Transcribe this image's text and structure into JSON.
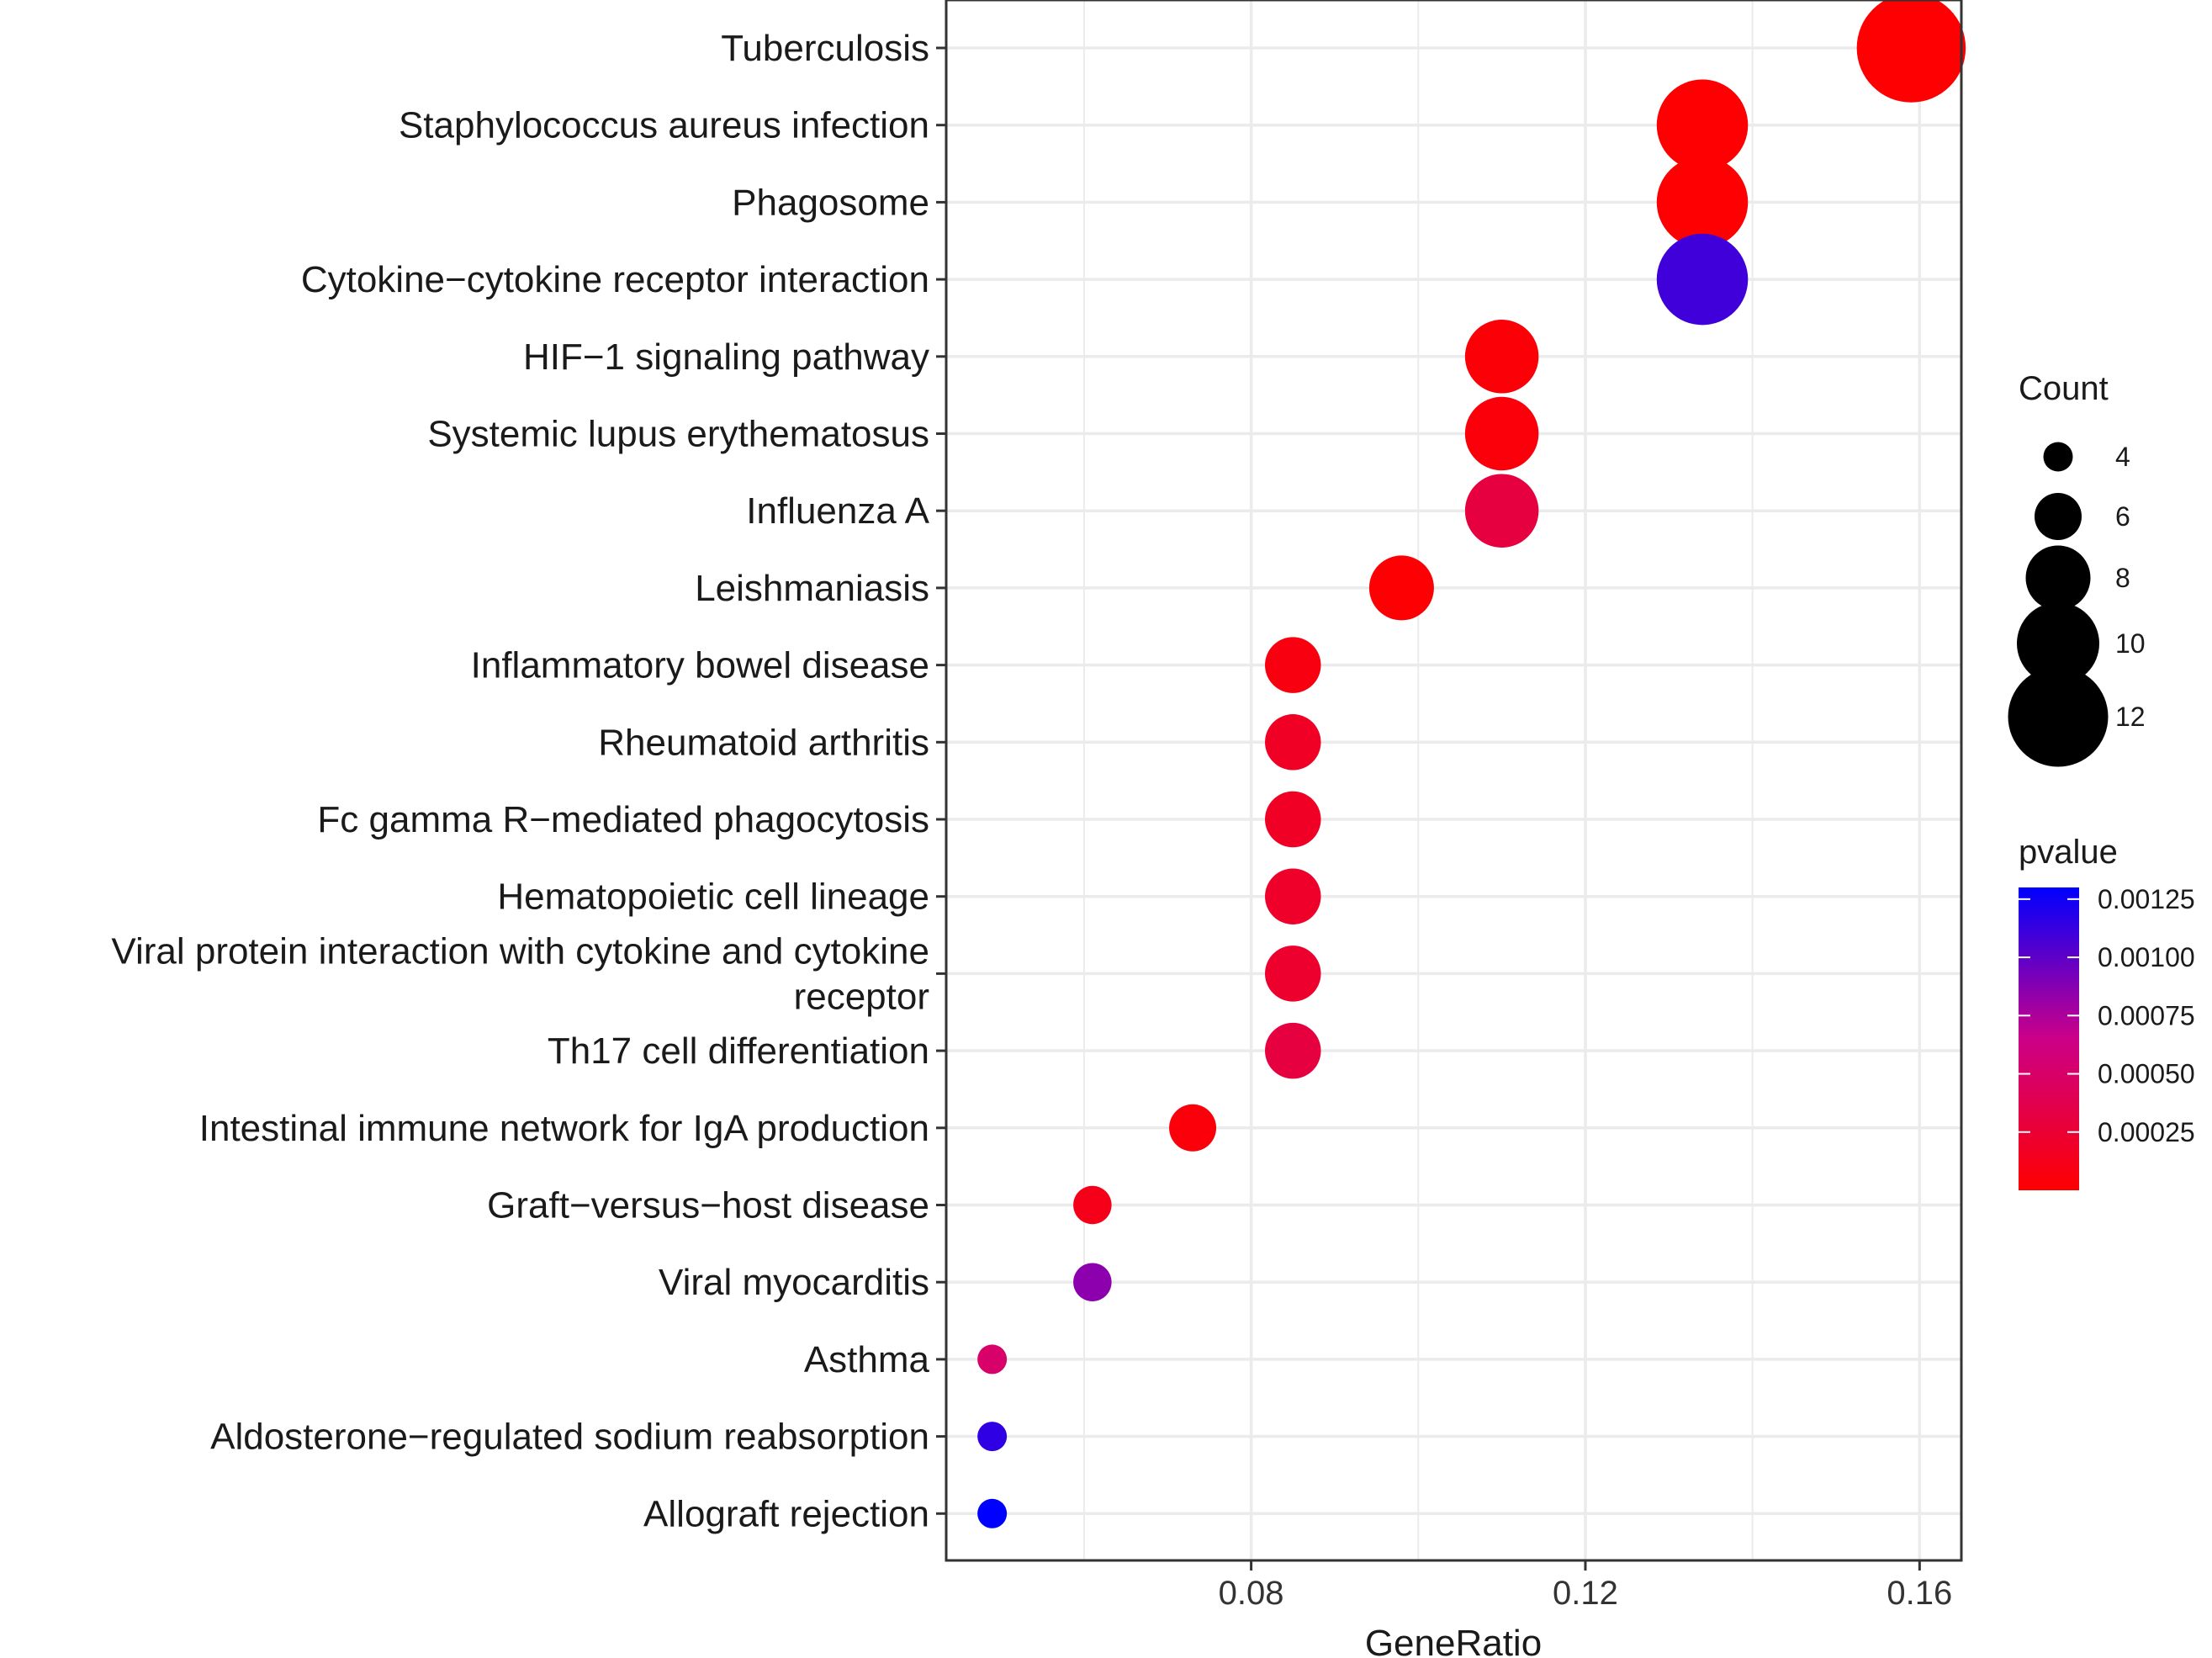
{
  "chart_data": {
    "type": "scatter",
    "title": "",
    "xlabel": "GeneRatio",
    "ylabel": "",
    "xlim": [
      0.0435,
      0.165
    ],
    "x_ticks": [
      0.08,
      0.12,
      0.16
    ],
    "x_tick_labels": [
      "0.08",
      "0.12",
      "0.16"
    ],
    "grid": true,
    "categories": [
      "Tuberculosis",
      "Staphylococcus aureus infection",
      "Phagosome",
      "Cytokine−cytokine receptor interaction",
      "HIF−1 signaling pathway",
      "Systemic lupus erythematosus",
      "Influenza A",
      "Leishmaniasis",
      "Inflammatory bowel disease",
      "Rheumatoid arthritis",
      "Fc gamma R−mediated phagocytosis",
      "Hematopoietic cell lineage",
      "Viral protein interaction with cytokine and cytokine receptor",
      "Th17 cell differentiation",
      "Intestinal immune network for IgA production",
      "Graft−versus−host disease",
      "Viral myocarditis",
      "Asthma",
      "Aldosterone−regulated sodium reabsorption",
      "Allograft rejection"
    ],
    "category_label_lines": [
      [
        "Tuberculosis"
      ],
      [
        "Staphylococcus aureus infection"
      ],
      [
        "Phagosome"
      ],
      [
        "Cytokine−cytokine receptor interaction"
      ],
      [
        "HIF−1 signaling pathway"
      ],
      [
        "Systemic lupus erythematosus"
      ],
      [
        "Influenza A"
      ],
      [
        "Leishmaniasis"
      ],
      [
        "Inflammatory bowel disease"
      ],
      [
        "Rheumatoid arthritis"
      ],
      [
        "Fc gamma R−mediated phagocytosis"
      ],
      [
        "Hematopoietic cell lineage"
      ],
      [
        "Viral protein interaction with cytokine and cytokine",
        "receptor"
      ],
      [
        "Th17 cell differentiation"
      ],
      [
        "Intestinal immune network for IgA production"
      ],
      [
        "Graft−versus−host disease"
      ],
      [
        "Viral myocarditis"
      ],
      [
        "Asthma"
      ],
      [
        "Aldosterone−regulated sodium reabsorption"
      ],
      [
        "Allograft rejection"
      ]
    ],
    "gene_ratio": [
      0.159,
      0.134,
      0.134,
      0.134,
      0.11,
      0.11,
      0.11,
      0.098,
      0.085,
      0.085,
      0.085,
      0.085,
      0.085,
      0.085,
      0.073,
      0.061,
      0.061,
      0.049,
      0.049,
      0.049
    ],
    "count": [
      13,
      11,
      11,
      11,
      9,
      9,
      9,
      8,
      7,
      7,
      7,
      7,
      7,
      7,
      6,
      5,
      5,
      4,
      4,
      4
    ],
    "pvalue": [
      1e-05,
      1e-05,
      1e-05,
      0.0011,
      4e-05,
      5e-05,
      0.0003,
      2e-05,
      8e-05,
      0.00018,
      0.00018,
      0.0002,
      0.00022,
      0.0003,
      5e-05,
      0.00012,
      0.00085,
      0.0005,
      0.00115,
      0.0013
    ],
    "size_legend": {
      "title": "Count",
      "values": [
        4,
        6,
        8,
        10,
        12
      ],
      "labels": [
        "4",
        "6",
        "8",
        "10",
        "12"
      ]
    },
    "color_legend": {
      "title": "pvalue",
      "low_color": "#ff0000",
      "high_color": "#0000ff",
      "range": [
        0.0,
        0.0013
      ],
      "ticks": [
        0.00025,
        0.0005,
        0.00075,
        0.001,
        0.00125
      ],
      "labels": [
        "0.00025",
        "0.00050",
        "0.00075",
        "0.00100",
        "0.00125"
      ]
    },
    "colors": {
      "grid": "#ebebeb",
      "panel_border": "#333333",
      "point_size_legend": "#000000"
    }
  }
}
